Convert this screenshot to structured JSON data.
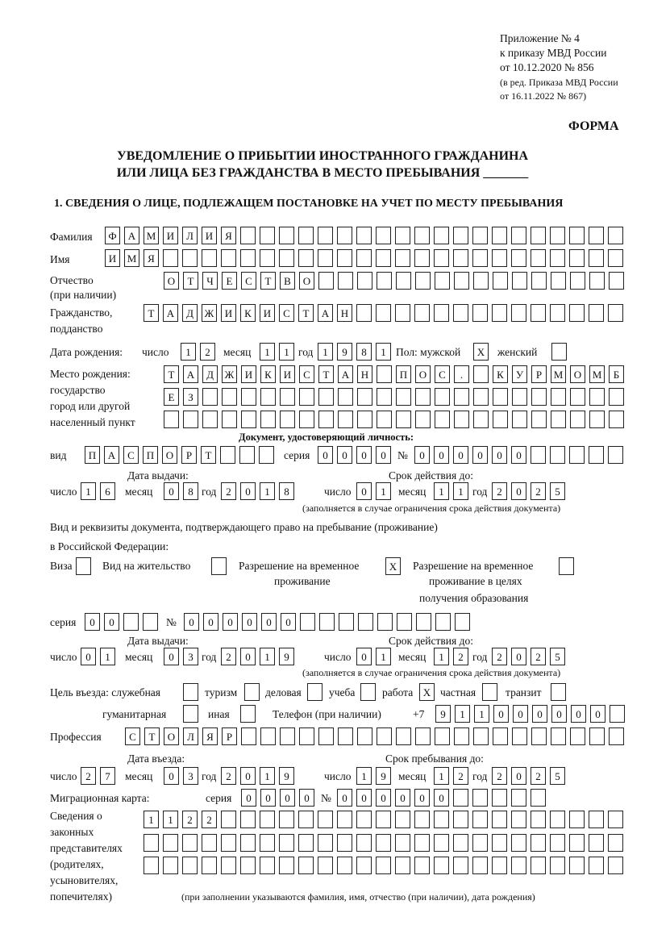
{
  "header": {
    "appendix": "Приложение № 4",
    "order": "к приказу МВД России",
    "order_date": "от 10.12.2020 № 856",
    "revision1": "(в ред. Приказа МВД России",
    "revision2": "от 16.11.2022 № 867)",
    "form_label": "ФОРМА",
    "title1": "УВЕДОМЛЕНИЕ О ПРИБЫТИИ ИНОСТРАННОГО ГРАЖДАНИНА",
    "title2": "ИЛИ ЛИЦА БЕЗ ГРАЖДАНСТВА В МЕСТО ПРЕБЫВАНИЯ _______",
    "section1": "1. СВЕДЕНИЯ О ЛИЦЕ, ПОДЛЕЖАЩЕМ ПОСТАНОВКЕ НА УЧЕТ ПО МЕСТУ ПРЕБЫВАНИЯ"
  },
  "labels": {
    "surname": "Фамилия",
    "name": "Имя",
    "patronymic1": "Отчество",
    "patronymic2": "(при наличии)",
    "citizenship1": "Гражданство,",
    "citizenship2": "подданство",
    "birth_date": "Дата рождения:",
    "day": "число",
    "month": "месяц",
    "year": "год",
    "sex": "Пол: мужской",
    "female": "женский",
    "birth_place1": "Место рождения:",
    "birth_place2": "государство",
    "birth_place3": "город или другой",
    "birth_place4": "населенный пункт",
    "id_doc": "Документ, удостоверяющий личность:",
    "kind": "вид",
    "series": "серия",
    "number": "№",
    "issue_date": "Дата выдачи:",
    "valid_until": "Срок действия до:",
    "validity_note": "(заполняется в случае ограничения срока действия документа)",
    "stay_doc1": "Вид и реквизиты документа, подтверждающего право на пребывание (проживание)",
    "stay_doc2": "в Российской Федерации:",
    "visa": "Виза",
    "residence_permit": "Вид на жительство",
    "temp_residence1": "Разрешение на временное",
    "temp_residence2": "проживание",
    "temp_edu1": "Разрешение на временное",
    "temp_edu2": "проживание в целях",
    "temp_edu3": "получения образования",
    "purpose": "Цель въезда: служебная",
    "tourism": "туризм",
    "business": "деловая",
    "study": "учеба",
    "work": "работа",
    "private": "частная",
    "transit": "транзит",
    "humanitarian": "гуманитарная",
    "other": "иная",
    "phone": "Телефон (при наличии)",
    "phone_prefix": "+7",
    "profession": "Профессия",
    "entry_date": "Дата въезда:",
    "stay_until": "Срок пребывания до:",
    "migration_card": "Миграционная карта:",
    "reps1": "Сведения о",
    "reps2": "законных",
    "reps3": "представителях",
    "reps4": "(родителях,",
    "reps5": "усыновителях,",
    "reps6": "попечителях)",
    "reps_note": "(при заполнении указываются фамилия, имя, отчество (при наличии), дата рождения)"
  },
  "values": {
    "surname": "ФАМИЛИЯ",
    "name": "ИМЯ",
    "patronymic": "ОТЧЕСТВО",
    "citizenship": "ТАДЖИКИСТАН",
    "birth": {
      "day": "12",
      "month": "11",
      "year": "1981"
    },
    "sex_male": "X",
    "sex_female": "",
    "birth_place": [
      "ТАДЖИКИСТАН ПОС. КУРМОМБ",
      "ЕЗ",
      ""
    ],
    "id_doc": {
      "kind": "ПАСПОРТ",
      "series": "0000",
      "number": "000000",
      "issue": {
        "day": "16",
        "month": "08",
        "year": "2018"
      },
      "valid": {
        "day": "01",
        "month": "11",
        "year": "2025"
      }
    },
    "stay_doc_type": {
      "visa": "",
      "residence_permit": "",
      "temp_residence": "X",
      "temp_edu": ""
    },
    "stay_doc": {
      "series": "00",
      "number": "000000",
      "issue": {
        "day": "01",
        "month": "03",
        "year": "2019"
      },
      "valid": {
        "day": "01",
        "month": "12",
        "year": "2025"
      }
    },
    "purpose": {
      "official": "",
      "tourism": "",
      "business": "",
      "study": "",
      "work": "X",
      "private": "",
      "transit": "",
      "humanitarian": "",
      "other": ""
    },
    "phone": "911000000",
    "profession": "СТОЛЯР",
    "entry": {
      "day": "27",
      "month": "03",
      "year": "2019"
    },
    "stay_until": {
      "day": "19",
      "month": "12",
      "year": "2025"
    },
    "migration_card": {
      "series": "0000",
      "number": "000000"
    },
    "representatives": [
      "1122",
      "",
      ""
    ]
  }
}
